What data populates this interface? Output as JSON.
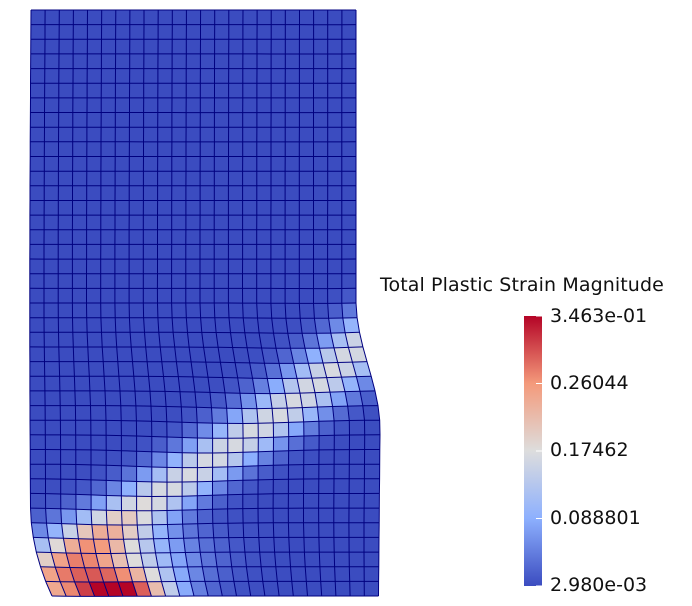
{
  "legend": {
    "title": "Total Plastic Strain Magnitude",
    "range": [
      0.00298,
      0.3463
    ],
    "labels": [
      "3.463e-01",
      "0.26044",
      "0.17462",
      "0.088801",
      "2.980e-03"
    ],
    "label_values": [
      0.3463,
      0.26044,
      0.17462,
      0.088801,
      0.00298
    ]
  },
  "colors": {
    "map_low": "#3b4cc0",
    "map_mid": "#dddddd",
    "map_high": "#b40426",
    "mesh_lines": "#000080",
    "background": "#ffffff"
  },
  "mesh": {
    "columns": 23,
    "rows": 40
  }
}
